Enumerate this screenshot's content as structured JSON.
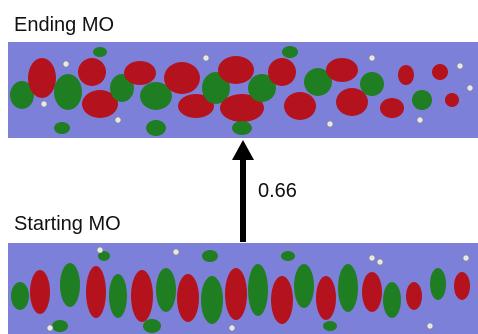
{
  "top_label": "Ending MO",
  "bottom_label": "Starting MO",
  "arrow_label": "0.66"
}
